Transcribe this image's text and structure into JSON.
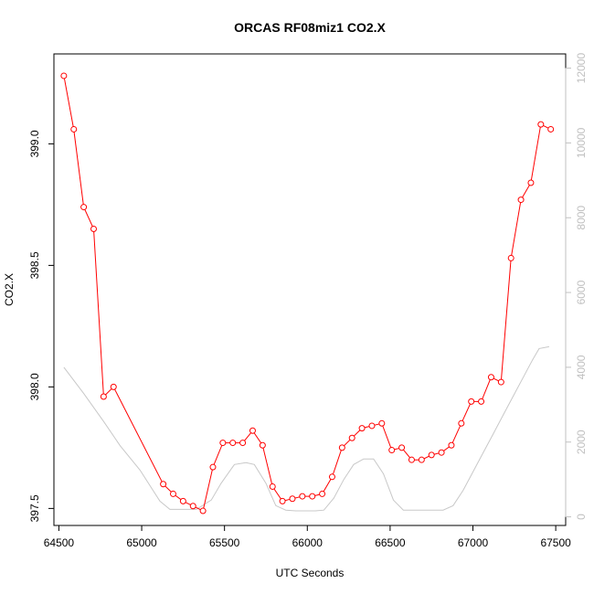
{
  "chart_data": {
    "type": "line",
    "title": "ORCAS RF08miz1 CO2.X",
    "xlabel": "UTC Seconds",
    "ylabel": "CO2.X",
    "xlim": [
      64470,
      67560
    ],
    "ylim": [
      397.43,
      399.37
    ],
    "y2lim": [
      -230,
      12380
    ],
    "x_ticks": [
      64500,
      65000,
      65500,
      66000,
      66500,
      67000,
      67500
    ],
    "x_tick_labels": [
      "64500",
      "65000",
      "65500",
      "66000",
      "66500",
      "67000",
      "67500"
    ],
    "y_ticks": [
      397.5,
      398.0,
      398.5,
      399.0
    ],
    "y_tick_labels": [
      "397.5",
      "398.0",
      "398.5",
      "399.0"
    ],
    "y2_ticks": [
      0,
      2000,
      4000,
      6000,
      8000,
      10000,
      12000
    ],
    "y2_tick_labels": [
      "0",
      "2000",
      "4000",
      "6000",
      "8000",
      "10000",
      "12000"
    ],
    "grid": false,
    "box": true,
    "series": [
      {
        "axis": "left",
        "color": "#ff0000",
        "marker": "open-circle",
        "x": [
          64530,
          64590,
          64650,
          64710,
          64770,
          64830,
          65130,
          65190,
          65250,
          65310,
          65370,
          65430,
          65490,
          65550,
          65610,
          65670,
          65730,
          65790,
          65850,
          65910,
          65970,
          66030,
          66090,
          66150,
          66210,
          66270,
          66330,
          66390,
          66450,
          66510,
          66570,
          66630,
          66690,
          66750,
          66810,
          66870,
          66930,
          66990,
          67050,
          67110,
          67170,
          67230,
          67290,
          67350,
          67410,
          67470
        ],
        "y": [
          399.28,
          399.06,
          398.74,
          398.65,
          397.96,
          398.0,
          397.6,
          397.56,
          397.53,
          397.51,
          397.49,
          397.67,
          397.77,
          397.77,
          397.77,
          397.82,
          397.76,
          397.59,
          397.53,
          397.54,
          397.55,
          397.55,
          397.56,
          397.63,
          397.75,
          397.79,
          397.83,
          397.84,
          397.85,
          397.74,
          397.75,
          397.7,
          397.7,
          397.72,
          397.73,
          397.76,
          397.85,
          397.94,
          397.94,
          398.04,
          398.02,
          398.53,
          398.77,
          398.84,
          399.08,
          399.06
        ]
      },
      {
        "axis": "right",
        "color": "#c8c8c8",
        "marker": "none",
        "x": [
          64530,
          64650,
          64770,
          64870,
          64990,
          65110,
          65170,
          65250,
          65330,
          65420,
          65480,
          65560,
          65630,
          65680,
          65750,
          65810,
          65870,
          65930,
          65990,
          66050,
          66100,
          66160,
          66220,
          66280,
          66340,
          66400,
          66460,
          66520,
          66580,
          66640,
          66700,
          66760,
          66820,
          66880,
          66940,
          67000,
          67060,
          67120,
          67180,
          67240,
          67300,
          67360,
          67400,
          67460
        ],
        "y": [
          4000,
          3300,
          2550,
          1900,
          1250,
          420,
          200,
          200,
          200,
          450,
          900,
          1400,
          1450,
          1400,
          900,
          300,
          180,
          160,
          160,
          160,
          180,
          500,
          1000,
          1400,
          1550,
          1550,
          1150,
          450,
          180,
          180,
          180,
          180,
          180,
          300,
          700,
          1200,
          1700,
          2200,
          2700,
          3200,
          3700,
          4200,
          4500,
          4550
        ]
      }
    ]
  }
}
